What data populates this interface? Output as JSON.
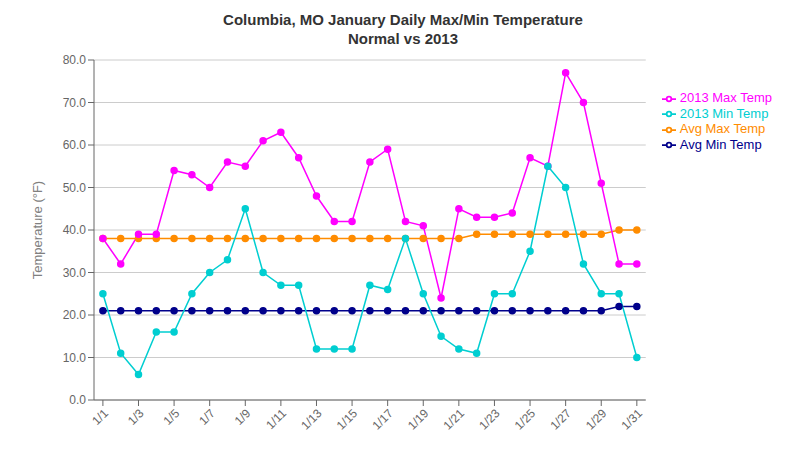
{
  "chart_data": {
    "type": "line",
    "title": "Columbia, MO January Daily Max/Min Temperature\nNormal vs 2013",
    "y_label": "Temperature (°F)",
    "x": [
      1,
      2,
      3,
      4,
      5,
      6,
      7,
      8,
      9,
      10,
      11,
      12,
      13,
      14,
      15,
      16,
      17,
      18,
      19,
      20,
      21,
      22,
      23,
      24,
      25,
      26,
      27,
      28,
      29,
      30,
      31
    ],
    "xlim": [
      0.5,
      31.5
    ],
    "xticks": [
      {
        "value": 1,
        "label": "1/1"
      },
      {
        "value": 3,
        "label": "1/3"
      },
      {
        "value": 5,
        "label": "1/5"
      },
      {
        "value": 7,
        "label": "1/7"
      },
      {
        "value": 9,
        "label": "1/9"
      },
      {
        "value": 11,
        "label": "1/11"
      },
      {
        "value": 13,
        "label": "1/13"
      },
      {
        "value": 15,
        "label": "1/15"
      },
      {
        "value": 17,
        "label": "1/17"
      },
      {
        "value": 19,
        "label": "1/19"
      },
      {
        "value": 21,
        "label": "1/21"
      },
      {
        "value": 23,
        "label": "1/23"
      },
      {
        "value": 25,
        "label": "1/25"
      },
      {
        "value": 27,
        "label": "1/27"
      },
      {
        "value": 29,
        "label": "1/29"
      },
      {
        "value": 31,
        "label": "1/31"
      }
    ],
    "ylim": [
      0.0,
      80.0
    ],
    "yticks": [
      {
        "value": 0,
        "label": "0.0"
      },
      {
        "value": 10,
        "label": "10.0"
      },
      {
        "value": 20,
        "label": "20.0"
      },
      {
        "value": 30,
        "label": "30.0"
      },
      {
        "value": 40,
        "label": "40.0"
      },
      {
        "value": 50,
        "label": "50.0"
      },
      {
        "value": 60,
        "label": "60.0"
      },
      {
        "value": 70,
        "label": "70.0"
      },
      {
        "value": 80,
        "label": "80.0"
      }
    ],
    "grid": true,
    "legend": "right",
    "marker": "circle",
    "series": [
      {
        "name": "Avg Max Temp",
        "color": "#FF8C00",
        "values": [
          38,
          38,
          38,
          38,
          38,
          38,
          38,
          38,
          38,
          38,
          38,
          38,
          38,
          38,
          38,
          38,
          38,
          38,
          38,
          38,
          38,
          39,
          39,
          39,
          39,
          39,
          39,
          39,
          39,
          40,
          40
        ]
      },
      {
        "name": "Avg Min Temp",
        "color": "#00008B",
        "values": [
          21,
          21,
          21,
          21,
          21,
          21,
          21,
          21,
          21,
          21,
          21,
          21,
          21,
          21,
          21,
          21,
          21,
          21,
          21,
          21,
          21,
          21,
          21,
          21,
          21,
          21,
          21,
          21,
          21,
          22,
          22
        ]
      },
      {
        "name": "2013 Max Temp",
        "color": "#FF00FF",
        "values": [
          38,
          32,
          39,
          39,
          54,
          53,
          50,
          56,
          55,
          61,
          63,
          57,
          48,
          42,
          42,
          56,
          59,
          42,
          41,
          24,
          45,
          43,
          43,
          44,
          57,
          55,
          77,
          70,
          51,
          32,
          32
        ]
      },
      {
        "name": "2013 Min Temp",
        "color": "#00CED1",
        "values": [
          25,
          11,
          6,
          16,
          16,
          25,
          30,
          33,
          45,
          30,
          27,
          27,
          12,
          12,
          12,
          27,
          26,
          38,
          25,
          15,
          12,
          11,
          25,
          25,
          35,
          55,
          50,
          32,
          25,
          25,
          10
        ]
      }
    ]
  }
}
